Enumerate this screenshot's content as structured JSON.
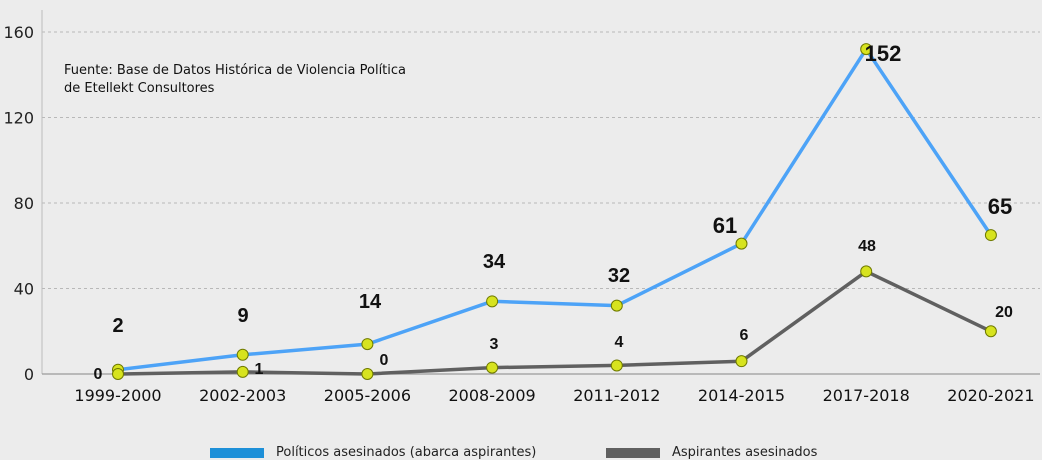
{
  "chart_data": {
    "type": "line",
    "categories": [
      "1999-2000",
      "2002-2003",
      "2005-2006",
      "2008-2009",
      "2011-2012",
      "2014-2015",
      "2017-2018",
      "2020-2021"
    ],
    "series": [
      {
        "name": "Políticos asesinados (abarca aspirantes)",
        "color": "#4da3f7",
        "values": [
          2,
          9,
          14,
          34,
          32,
          61,
          152,
          65
        ]
      },
      {
        "name": "Aspirantes asesinados",
        "color": "#606060",
        "values": [
          0,
          1,
          0,
          3,
          4,
          6,
          48,
          20
        ]
      }
    ],
    "y_ticks": [
      "0",
      "40",
      "80",
      "120",
      "160"
    ],
    "ylim": [
      0,
      160
    ],
    "grid": true,
    "legend_position": "bottom",
    "marker_color": "#d7e31f",
    "source_note": [
      "Fuente: Base de Datos Histórica de Violencia Política",
      "de Etellekt Consultores"
    ]
  }
}
